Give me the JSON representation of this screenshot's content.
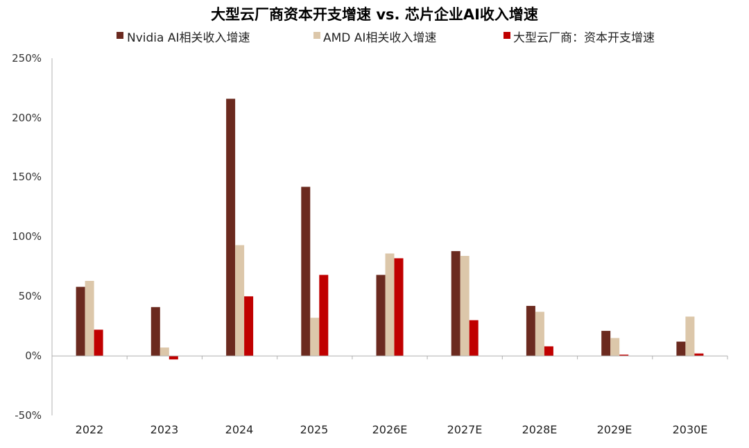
{
  "chart_data": {
    "type": "bar",
    "title": "大型云厂商资本开支增速 vs. 芯片企业AI收入增速",
    "xlabel": "",
    "ylabel": "",
    "categories": [
      "2022",
      "2023",
      "2024",
      "2025",
      "2026E",
      "2027E",
      "2028E",
      "2029E",
      "2030E"
    ],
    "series": [
      {
        "name": "Nvidia AI相关收入增速",
        "color": "#6b2a1f",
        "values": [
          58,
          41,
          216,
          142,
          68,
          88,
          42,
          21,
          12
        ]
      },
      {
        "name": "AMD AI相关收入增速",
        "color": "#dcc7aa",
        "values": [
          63,
          7,
          93,
          32,
          86,
          84,
          37,
          15,
          33
        ]
      },
      {
        "name": "大型云厂商：资本开支增速",
        "color": "#c00000",
        "values": [
          22,
          -3,
          50,
          68,
          82,
          30,
          8,
          1,
          2
        ]
      }
    ],
    "ylim": [
      -50,
      250
    ],
    "y_ticks": [
      "-50%",
      "0%",
      "50%",
      "100%",
      "150%",
      "200%",
      "250%"
    ],
    "grid": false,
    "legend_position": "top"
  }
}
